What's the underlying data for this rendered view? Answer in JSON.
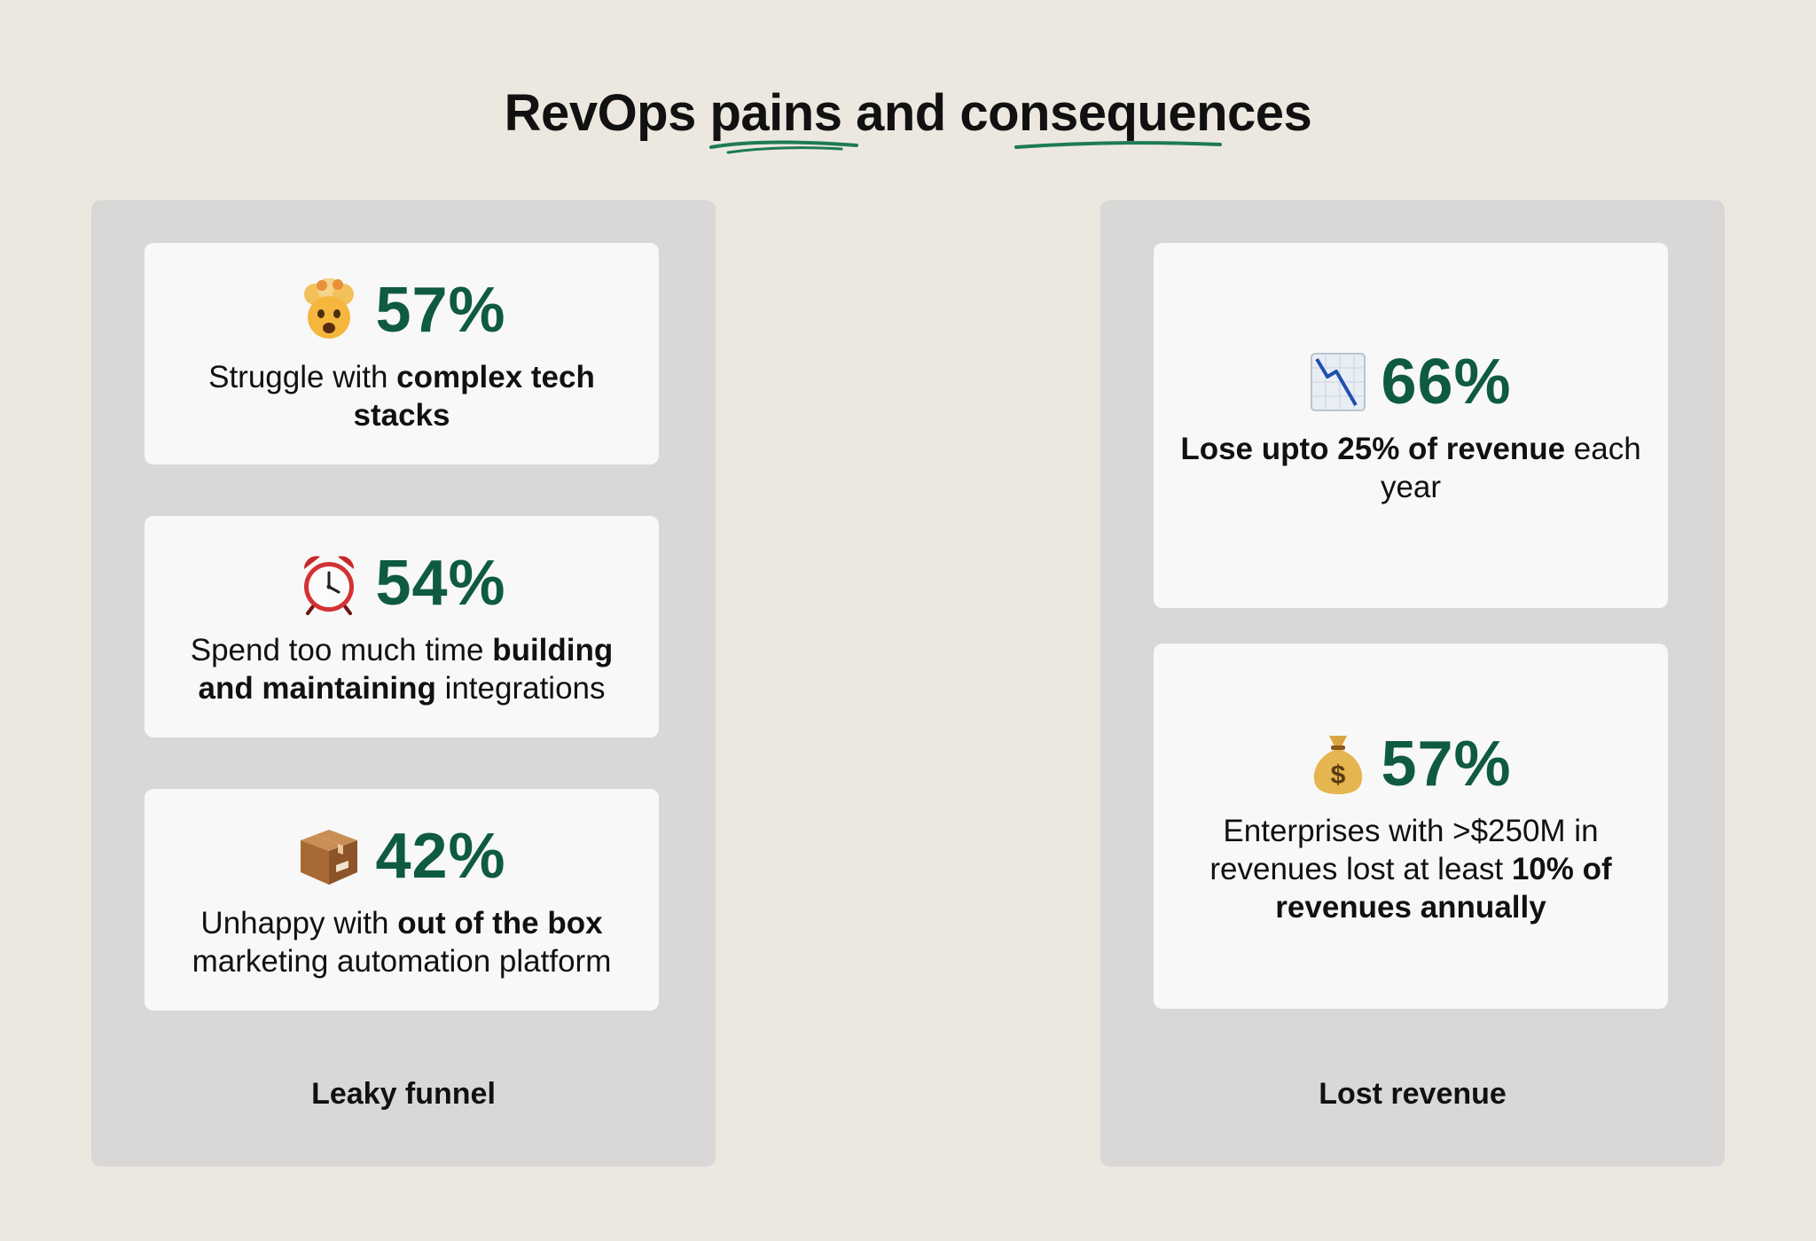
{
  "title": {
    "w1": "RevOps",
    "w2": "pains",
    "w3": "and",
    "w4": "consequences"
  },
  "colors": {
    "accent": "#0f5b3f",
    "underline": "#1e7a55",
    "background": "#ece8e0",
    "panel": "#d9d8d7",
    "card": "#f8f8f8"
  },
  "left_panel": {
    "label": "Leaky funnel",
    "cards": [
      {
        "icon": "exploding-head-icon",
        "percent": "57%",
        "t1": "Struggle with ",
        "b1": "complex tech stacks",
        "t2": ""
      },
      {
        "icon": "alarm-clock-icon",
        "percent": "54%",
        "t1": "Spend too much time ",
        "b1": "building and maintaining",
        "t2": " integrations"
      },
      {
        "icon": "package-box-icon",
        "percent": "42%",
        "t1": "Unhappy with ",
        "b1": "out of the box",
        "t2": " marketing automation platform"
      }
    ]
  },
  "right_panel": {
    "label": "Lost revenue",
    "cards": [
      {
        "icon": "chart-decreasing-icon",
        "percent": "66%",
        "t1": "",
        "b1": "Lose upto 25% of revenue",
        "t2": " each year",
        "b2": ""
      },
      {
        "icon": "money-bag-icon",
        "percent": "57%",
        "t1": "Enterprises with >$250M in revenues lost at least ",
        "b1": "10% of revenues annually",
        "t2": "",
        "b2": ""
      }
    ]
  }
}
